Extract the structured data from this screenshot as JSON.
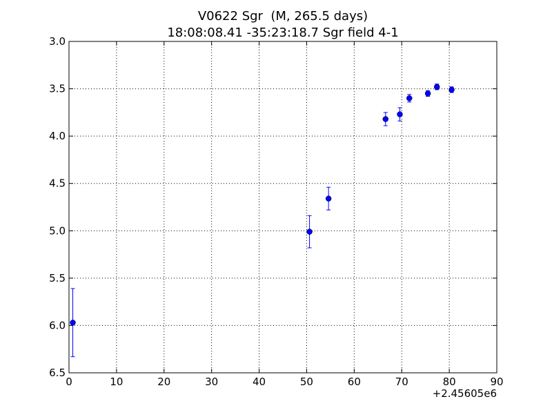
{
  "chart_data": {
    "type": "scatter",
    "title_line1": "V0622 Sgr  (M, 265.5 days)",
    "title_line2": "18:08:08.41 -35:23:18.7 Sgr field 4-1",
    "xlabel": "",
    "ylabel": "",
    "x_offset_label": "+2.45605e6",
    "xlim": [
      0,
      90
    ],
    "ylim": [
      3.0,
      6.5
    ],
    "y_inverted": true,
    "grid": true,
    "marker_color": "#0000ff",
    "x_ticks": [
      0,
      10,
      20,
      30,
      40,
      50,
      60,
      70,
      80,
      90
    ],
    "x_tick_labels": [
      "0",
      "10",
      "20",
      "30",
      "40",
      "50",
      "60",
      "70",
      "80",
      "90"
    ],
    "y_ticks": [
      3.0,
      3.5,
      4.0,
      4.5,
      5.0,
      5.5,
      6.0,
      6.5
    ],
    "y_tick_labels": [
      "3.0",
      "3.5",
      "4.0",
      "4.5",
      "5.0",
      "5.5",
      "6.0",
      "6.5"
    ],
    "series": [
      {
        "points": [
          {
            "x": 0.8,
            "y": 5.97,
            "err": 0.36
          },
          {
            "x": 50.6,
            "y": 5.01,
            "err": 0.17
          },
          {
            "x": 54.6,
            "y": 4.66,
            "err": 0.12
          },
          {
            "x": 66.6,
            "y": 3.82,
            "err": 0.07
          },
          {
            "x": 69.6,
            "y": 3.77,
            "err": 0.07
          },
          {
            "x": 71.6,
            "y": 3.6,
            "err": 0.04
          },
          {
            "x": 75.5,
            "y": 3.55,
            "err": 0.03
          },
          {
            "x": 77.4,
            "y": 3.48,
            "err": 0.03
          },
          {
            "x": 80.5,
            "y": 3.51,
            "err": 0.03
          }
        ]
      }
    ]
  }
}
